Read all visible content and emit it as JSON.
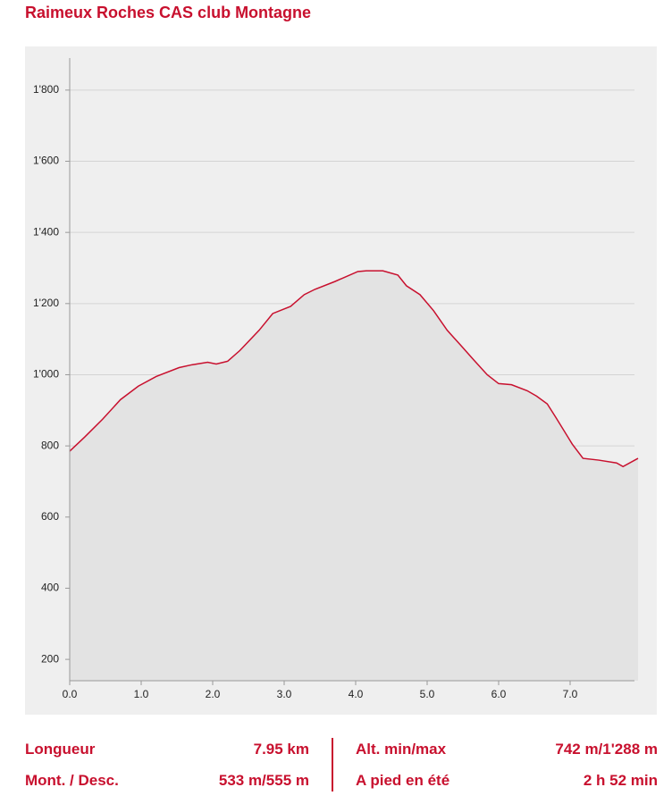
{
  "chart_data": {
    "type": "area",
    "title": "Raimeux Roches CAS club Montagne",
    "x": [
      0,
      0.21,
      0.46,
      0.71,
      0.96,
      1.21,
      1.53,
      1.71,
      1.93,
      2.05,
      2.21,
      2.38,
      2.65,
      2.84,
      3.09,
      3.28,
      3.43,
      3.71,
      4.03,
      4.15,
      4.38,
      4.59,
      4.71,
      4.9,
      5.09,
      5.28,
      5.46,
      5.65,
      5.84,
      6.0,
      6.18,
      6.4,
      6.53,
      6.68,
      6.8,
      7.03,
      7.18,
      7.4,
      7.65,
      7.74,
      7.95
    ],
    "values": [
      785,
      825,
      875,
      930,
      968,
      995,
      1020,
      1028,
      1035,
      1030,
      1038,
      1068,
      1125,
      1172,
      1192,
      1225,
      1240,
      1262,
      1290,
      1292,
      1292,
      1280,
      1250,
      1225,
      1180,
      1125,
      1085,
      1042,
      1000,
      975,
      972,
      955,
      940,
      918,
      880,
      805,
      765,
      760,
      752,
      742,
      765
    ],
    "color": "#c8102e",
    "fill": "#e3e3e3",
    "xlim": [
      0,
      7.95
    ],
    "xticks": [
      {
        "value": 0,
        "label": "0.0"
      },
      {
        "value": 1,
        "label": "1.0"
      },
      {
        "value": 2,
        "label": "2.0"
      },
      {
        "value": 3,
        "label": "3.0"
      },
      {
        "value": 4,
        "label": "4.0"
      },
      {
        "value": 5,
        "label": "5.0"
      },
      {
        "value": 6,
        "label": "6.0"
      },
      {
        "value": 7,
        "label": "7.0"
      }
    ],
    "ylim": [
      140,
      1890
    ],
    "yticks": [
      200,
      400,
      600,
      800,
      {
        "value": 1000,
        "label": "1'000"
      },
      {
        "value": 1200,
        "label": "1'200"
      },
      {
        "value": 1400,
        "label": "1'400"
      },
      {
        "value": 1600,
        "label": "1'600"
      },
      {
        "value": 1800,
        "label": "1'800"
      }
    ],
    "grid": true
  },
  "stats": [
    [
      {
        "label": "Longueur",
        "value": "7.95 km"
      },
      {
        "label": "Alt. min/max",
        "value": "742 m/1'288 m"
      }
    ],
    [
      {
        "label": "Mont. / Desc.",
        "value": "533 m/555 m"
      },
      {
        "label": "A pied en été",
        "value": "2 h 52 min"
      }
    ]
  ]
}
